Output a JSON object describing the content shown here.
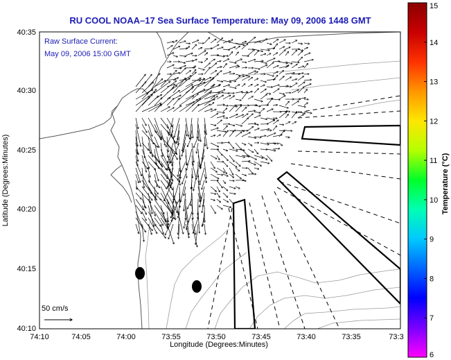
{
  "title": "RU COOL  NOAA–17  Sea Surface Temperature:  May 09, 2006 1448 GMT",
  "annotation": {
    "line1": "Raw Surface Current:",
    "line2": "May 09, 2006 15:00 GMT"
  },
  "scale_label": "50 cm/s",
  "axes": {
    "xlabel": "Longitude (Degrees:Minutes)",
    "ylabel": "Latitude (Degrees:Minutes)",
    "xticks": [
      "74:10",
      "74:05",
      "74:00",
      "73:55",
      "73:50",
      "73:45",
      "73:40",
      "73:35",
      "73:3"
    ],
    "yticks": [
      "40:35",
      "40:30",
      "40:25",
      "40:20",
      "40:15",
      "40:10"
    ]
  },
  "colorbar": {
    "label": "Temperature (°C)",
    "ticks": [
      "15",
      "14",
      "13",
      "12",
      "11",
      "10",
      "9",
      "8",
      "7",
      "6"
    ],
    "min": 6,
    "max": 15,
    "colors": [
      "#ff00ff",
      "#7a00ff",
      "#0000ff",
      "#0064ff",
      "#00c8ff",
      "#00ffb4",
      "#00ff28",
      "#b4ff00",
      "#ffe600",
      "#ff9600",
      "#ff3200",
      "#c80000",
      "#8b0000"
    ]
  },
  "map": {
    "land_color": "#ffffff",
    "coast_color": "#555555",
    "bathymetry_color": "#9a9a9a",
    "vector_color": "#000000",
    "marker_color": "#000000"
  }
}
